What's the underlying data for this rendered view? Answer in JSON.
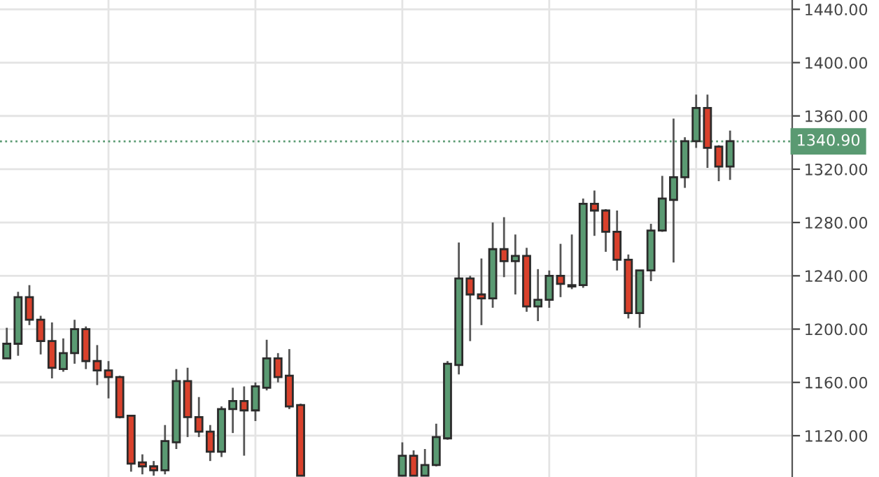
{
  "chart_data": {
    "type": "candlestick",
    "categories": [
      null,
      null,
      null,
      null,
      null,
      null,
      null,
      null,
      null,
      null,
      null,
      null,
      null,
      null,
      null,
      null,
      null,
      null,
      null,
      null,
      null,
      null,
      null,
      null,
      null,
      null,
      null,
      null,
      null,
      null,
      null,
      null,
      null,
      null,
      null,
      null,
      null,
      null,
      null,
      null,
      null,
      null,
      null,
      null,
      null,
      null,
      null,
      null,
      null,
      null,
      null,
      null,
      null,
      null,
      null,
      null,
      null,
      null,
      null,
      null,
      null,
      null,
      null,
      null,
      null,
      null,
      null,
      null,
      null,
      null
    ],
    "ohlc": [
      [
        1178,
        1201,
        1178,
        1189
      ],
      [
        1189,
        1228,
        1180,
        1224
      ],
      [
        1224,
        1233,
        1203,
        1207
      ],
      [
        1207,
        1210,
        1181,
        1191
      ],
      [
        1191,
        1205,
        1163,
        1171
      ],
      [
        1170,
        1193,
        1168,
        1182
      ],
      [
        1182,
        1207,
        1174,
        1200
      ],
      [
        1200,
        1202,
        1170,
        1176
      ],
      [
        1176,
        1188,
        1158,
        1169
      ],
      [
        1169,
        1176,
        1148,
        1164
      ],
      [
        1164,
        1165,
        1133,
        1134
      ],
      [
        1135,
        1135,
        1093,
        1099
      ],
      [
        1100,
        1106,
        1091,
        1097
      ],
      [
        1097,
        1101,
        1090,
        1094
      ],
      [
        1094,
        1128,
        1091,
        1116
      ],
      [
        1115,
        1170,
        1110,
        1161
      ],
      [
        1161,
        1171,
        1119,
        1134
      ],
      [
        1134,
        1149,
        1119,
        1123
      ],
      [
        1123,
        1128,
        1101,
        1108
      ],
      [
        1108,
        1142,
        1104,
        1140
      ],
      [
        1140,
        1156,
        1122,
        1146
      ],
      [
        1146,
        1157,
        1105,
        1139
      ],
      [
        1139,
        1160,
        1131,
        1157
      ],
      [
        1156,
        1192,
        1154,
        1178
      ],
      [
        1178,
        1182,
        1160,
        1164
      ],
      [
        1165,
        1185,
        1140,
        1142
      ],
      [
        1143,
        1144,
        1090,
        1090
      ],
      null,
      null,
      null,
      null,
      null,
      null,
      null,
      null,
      [
        1090,
        1115,
        1090,
        1105
      ],
      [
        1105,
        1109,
        1090,
        1090
      ],
      [
        1090,
        1110,
        1090,
        1098
      ],
      [
        1098,
        1129,
        1097,
        1119
      ],
      [
        1118,
        1176,
        1117,
        1174
      ],
      [
        1173,
        1265,
        1166,
        1238
      ],
      [
        1238,
        1240,
        1191,
        1226
      ],
      [
        1226,
        1253,
        1203,
        1223
      ],
      [
        1223,
        1280,
        1216,
        1260
      ],
      [
        1260,
        1284,
        1239,
        1251
      ],
      [
        1251,
        1271,
        1226,
        1255
      ],
      [
        1255,
        1261,
        1213,
        1217
      ],
      [
        1217,
        1245,
        1206,
        1222
      ],
      [
        1222,
        1244,
        1216,
        1240
      ],
      [
        1240,
        1264,
        1224,
        1234
      ],
      [
        1233,
        1271,
        1230,
        1232
      ],
      [
        1233,
        1298,
        1231,
        1294
      ],
      [
        1294,
        1304,
        1270,
        1289
      ],
      [
        1289,
        1290,
        1258,
        1273
      ],
      [
        1273,
        1289,
        1244,
        1252
      ],
      [
        1252,
        1256,
        1208,
        1212
      ],
      [
        1212,
        1244,
        1201,
        1244
      ],
      [
        1244,
        1279,
        1236,
        1274
      ],
      [
        1274,
        1315,
        1273,
        1298
      ],
      [
        1297,
        1358,
        1250,
        1314
      ],
      [
        1314,
        1344,
        1306,
        1341
      ],
      [
        1341,
        1376,
        1336,
        1366
      ],
      [
        1366,
        1376,
        1321,
        1336
      ],
      [
        1337,
        1338,
        1311,
        1322
      ],
      [
        1322,
        1349,
        1312,
        1341
      ],
      null,
      null,
      null,
      null,
      null
    ],
    "colors": [
      "#5a9a72",
      "#5a9a72",
      "#d9412c",
      "#d9412c",
      "#d9412c",
      "#5a9a72",
      "#5a9a72",
      "#d9412c",
      "#d9412c",
      "#d9412c",
      "#d9412c",
      "#d9412c",
      "#d9412c",
      "#d9412c",
      "#5a9a72",
      "#5a9a72",
      "#d9412c",
      "#d9412c",
      "#d9412c",
      "#5a9a72",
      "#5a9a72",
      "#d9412c",
      "#5a9a72",
      "#5a9a72",
      "#d9412c",
      "#d9412c",
      "#d9412c",
      null,
      null,
      null,
      null,
      null,
      null,
      null,
      null,
      "#5a9a72",
      "#d9412c",
      "#5a9a72",
      "#5a9a72",
      "#5a9a72",
      "#5a9a72",
      "#d9412c",
      "#d9412c",
      "#5a9a72",
      "#d9412c",
      "#5a9a72",
      "#d9412c",
      "#5a9a72",
      "#5a9a72",
      "#d9412c",
      "#d9412c",
      "#5a9a72",
      "#d9412c",
      "#d9412c",
      "#d9412c",
      "#d9412c",
      "#5a9a72",
      "#5a9a72",
      "#5a9a72",
      "#5a9a72",
      "#5a9a72",
      "#5a9a72",
      "#d9412c",
      "#d9412c",
      "#5a9a72",
      null,
      null,
      null,
      null,
      null
    ],
    "ylim": [
      1089,
      1447
    ],
    "yticks": [
      {
        "value": 1120,
        "label": "1120.00"
      },
      {
        "value": 1160,
        "label": "1160.00"
      },
      {
        "value": 1200,
        "label": "1200.00"
      },
      {
        "value": 1240,
        "label": "1240.00"
      },
      {
        "value": 1280,
        "label": "1280.00"
      },
      {
        "value": 1320,
        "label": "1320.00"
      },
      {
        "value": 1360,
        "label": "1360.00"
      },
      {
        "value": 1400,
        "label": "1400.00"
      },
      {
        "value": 1440,
        "label": "1440.00"
      }
    ],
    "ref_lines": [
      {
        "axis": "y",
        "value": 1340.9,
        "label": "1340.90",
        "color": "#5a9a72",
        "line_style": "dotted"
      }
    ],
    "grid": true,
    "tick_labels": "y"
  }
}
